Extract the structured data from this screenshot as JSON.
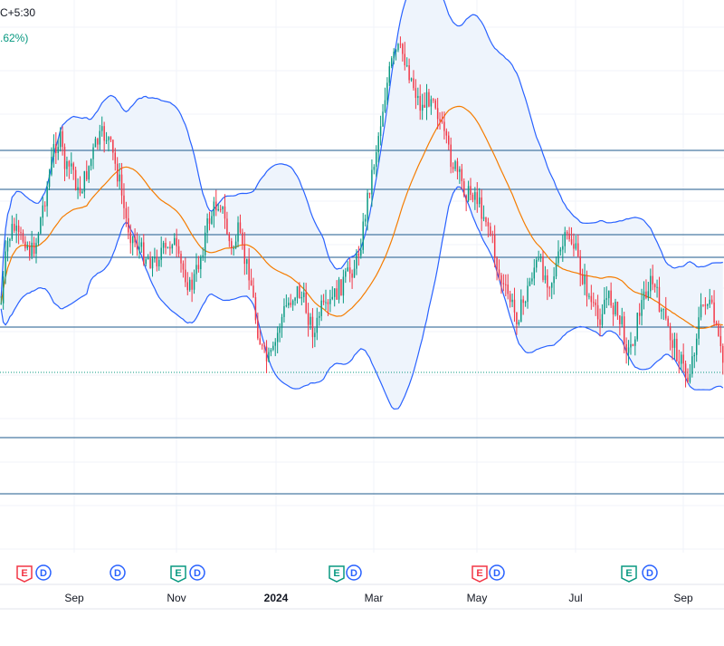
{
  "header": {
    "timezone": "C+5:30",
    "change": ".62%)"
  },
  "colors": {
    "up": "#089981",
    "down": "#f23645",
    "band": "#2962ff",
    "band_fill": "#eef4fc",
    "ma": "#f57c00",
    "hline": "#1e5a8c",
    "dotted": "#089981",
    "earnings_up": "#089981",
    "earnings_down": "#f23645",
    "dividend": "#2962ff"
  },
  "chart_data": {
    "type": "candlestick",
    "x_ticks": [
      {
        "label": "Sep",
        "bold": false
      },
      {
        "label": "Nov",
        "bold": false
      },
      {
        "label": "2024",
        "bold": true
      },
      {
        "label": "Mar",
        "bold": false
      },
      {
        "label": "May",
        "bold": false
      },
      {
        "label": "Jul",
        "bold": false
      },
      {
        "label": "Sep",
        "bold": false
      }
    ],
    "indicators": [
      "Bollinger Bands",
      "Moving Average"
    ],
    "horizontal_levels": 7,
    "price_path": [
      335,
      270,
      250,
      265,
      262,
      280,
      265,
      230,
      200,
      160,
      155,
      190,
      180,
      215,
      200,
      180,
      160,
      150,
      150,
      175,
      200,
      240,
      260,
      270,
      280,
      285,
      290,
      275,
      280,
      260,
      290,
      300,
      320,
      300,
      275,
      245,
      230,
      220,
      250,
      280,
      255,
      285,
      300,
      350,
      385,
      400,
      390,
      360,
      340,
      330,
      320,
      330,
      350,
      370,
      340,
      345,
      330,
      320,
      310,
      300,
      290,
      260,
      215,
      180,
      140,
      100,
      70,
      55,
      60,
      80,
      100,
      120,
      110,
      100,
      130,
      155,
      175,
      190,
      205,
      215,
      210,
      230,
      240,
      265,
      300,
      320,
      330,
      350,
      340,
      320,
      295,
      290,
      305,
      310,
      290,
      270,
      260,
      275,
      300,
      320,
      340,
      355,
      330,
      330,
      345,
      360,
      390,
      370,
      340,
      320,
      310,
      330,
      350,
      370,
      385,
      400,
      420,
      390,
      350,
      330,
      340,
      370,
      400
    ],
    "bands_period": 20,
    "band_std": 2,
    "events": [
      {
        "type": "earnings",
        "dir": "down"
      },
      {
        "type": "dividend"
      },
      {
        "type": "dividend"
      },
      {
        "type": "earnings",
        "dir": "up"
      },
      {
        "type": "dividend"
      },
      {
        "type": "earnings",
        "dir": "up"
      },
      {
        "type": "dividend"
      },
      {
        "type": "earnings",
        "dir": "down"
      },
      {
        "type": "dividend"
      },
      {
        "type": "earnings",
        "dir": "up"
      },
      {
        "type": "dividend"
      }
    ]
  }
}
